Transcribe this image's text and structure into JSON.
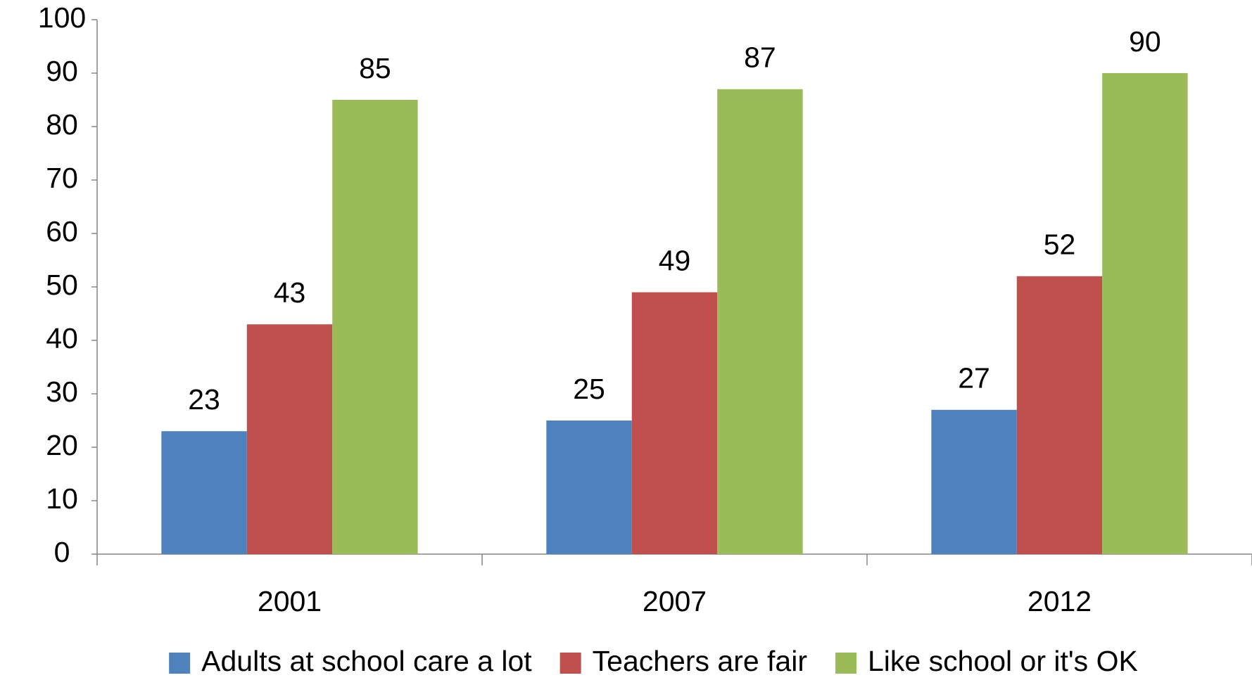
{
  "chart_data": {
    "type": "bar",
    "categories": [
      "2001",
      "2007",
      "2012"
    ],
    "series": [
      {
        "name": "Adults at school care a lot",
        "color": "#4f81bd",
        "values": [
          23,
          25,
          27
        ]
      },
      {
        "name": "Teachers are fair",
        "color": "#c0504d",
        "values": [
          43,
          49,
          52
        ]
      },
      {
        "name": "Like school or it's OK",
        "color": "#9bbb59",
        "values": [
          85,
          87,
          90
        ]
      }
    ],
    "ylim": [
      0,
      100
    ],
    "yticks": [
      0,
      10,
      20,
      30,
      40,
      50,
      60,
      70,
      80,
      90,
      100
    ],
    "grid": false,
    "legend": "bottom"
  }
}
